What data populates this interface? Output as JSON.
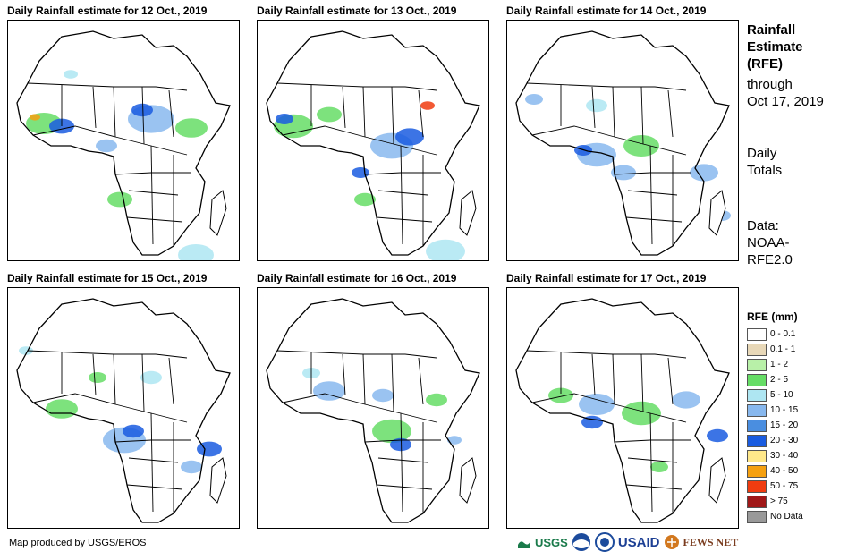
{
  "panels": [
    {
      "title": "Daily Rainfall estimate for 12 Oct., 2019"
    },
    {
      "title": "Daily Rainfall estimate for 13 Oct., 2019"
    },
    {
      "title": "Daily Rainfall estimate for 14 Oct., 2019"
    },
    {
      "title": "Daily Rainfall estimate for 15 Oct., 2019"
    },
    {
      "title": "Daily Rainfall estimate for 16 Oct., 2019"
    },
    {
      "title": "Daily Rainfall estimate for 17 Oct., 2019"
    }
  ],
  "side": {
    "title_lines": [
      "Rainfall",
      "Estimate",
      "(RFE)"
    ],
    "through_lines": [
      "through",
      "Oct 17, 2019"
    ],
    "daily_lines": [
      "Daily",
      "Totals"
    ],
    "data_lines": [
      "Data:",
      "NOAA-",
      "RFE2.0"
    ]
  },
  "legend": {
    "title": "RFE (mm)",
    "items": [
      {
        "label": "0 - 0.1",
        "color": "#ffffff"
      },
      {
        "label": "0.1 - 1",
        "color": "#e8d8b8"
      },
      {
        "label": "1 - 2",
        "color": "#b8f0a8"
      },
      {
        "label": "2 - 5",
        "color": "#66dd66"
      },
      {
        "label": "5 - 10",
        "color": "#aee6f2"
      },
      {
        "label": "10 - 15",
        "color": "#88b8ee"
      },
      {
        "label": "15 - 20",
        "color": "#4a8ee0"
      },
      {
        "label": "20 - 30",
        "color": "#1a5ce0"
      },
      {
        "label": "30 - 40",
        "color": "#ffe88a"
      },
      {
        "label": "40 - 50",
        "color": "#f5a010"
      },
      {
        "label": "50 - 75",
        "color": "#f03c10"
      },
      {
        "label": "> 75",
        "color": "#a01818"
      },
      {
        "label": "No Data",
        "color": "#999999"
      }
    ]
  },
  "credit": "Map produced by USGS/EROS",
  "logos": {
    "usgs": "USGS",
    "usaid": "USAID",
    "fewsnet": "FEWS NET"
  }
}
